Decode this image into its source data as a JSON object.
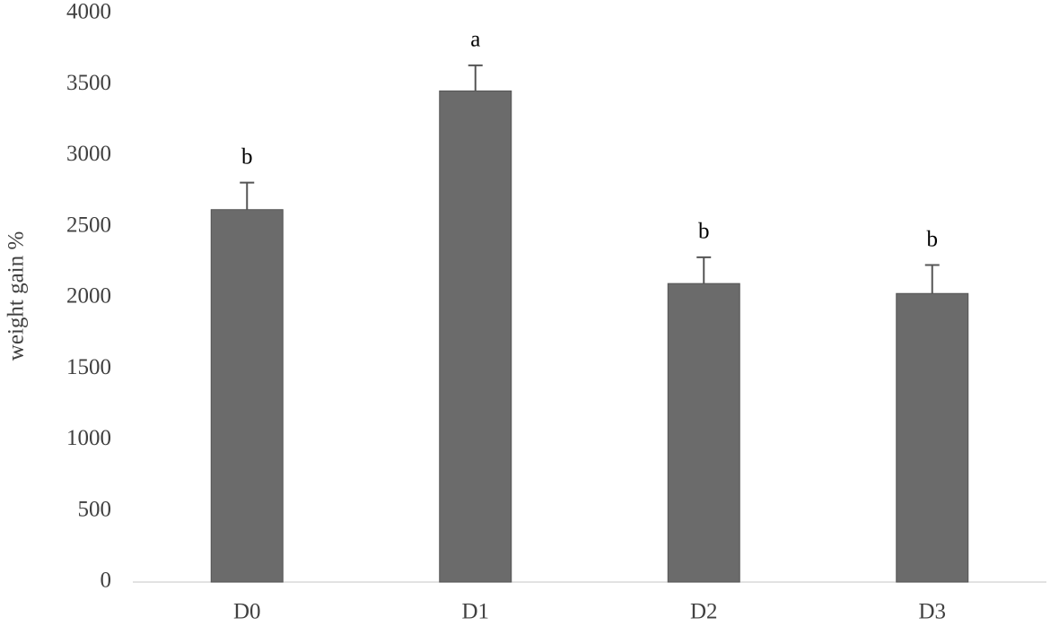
{
  "chart_data": {
    "type": "bar",
    "y_label": "weight gain %",
    "categories": [
      "D0",
      "D1",
      "D2",
      "D3"
    ],
    "values": [
      2620,
      3455,
      2100,
      2030
    ],
    "errors": [
      190,
      180,
      185,
      200
    ],
    "annotations": [
      "b",
      "a",
      "b",
      "b"
    ],
    "color": "#6b6b6b",
    "ylim": [
      0,
      4000
    ],
    "yticks": [
      0,
      500,
      1000,
      1500,
      2000,
      2500,
      3000,
      3500,
      4000
    ],
    "grid": false
  }
}
